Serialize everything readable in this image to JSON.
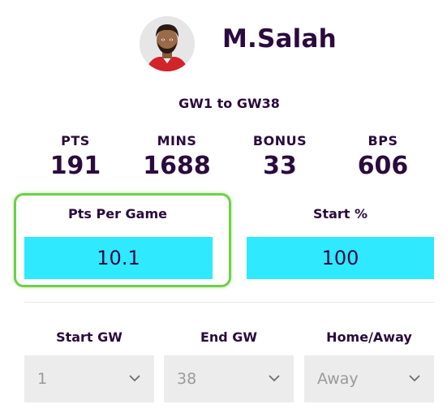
{
  "player": {
    "name": "M.Salah",
    "avatar_icon": "player-avatar-icon"
  },
  "range": "GW1 to GW38",
  "stats": [
    {
      "label": "PTS",
      "value": "191"
    },
    {
      "label": "MINS",
      "value": "1688"
    },
    {
      "label": "BONUS",
      "value": "33"
    },
    {
      "label": "BPS",
      "value": "606"
    }
  ],
  "metrics": {
    "pts_per_game": {
      "label": "Pts Per Game",
      "value": "10.1"
    },
    "start_pct": {
      "label": "Start %",
      "value": "100"
    }
  },
  "filters": {
    "start_gw": {
      "label": "Start GW",
      "value": "1"
    },
    "end_gw": {
      "label": "End GW",
      "value": "38"
    },
    "home_away": {
      "label": "Home/Away",
      "value": "Away"
    }
  },
  "colors": {
    "accent_cyan": "#2ee9ff",
    "highlight_green": "#6fcf4a",
    "text_purple": "#2b0a3d",
    "select_bg": "#ececec"
  }
}
